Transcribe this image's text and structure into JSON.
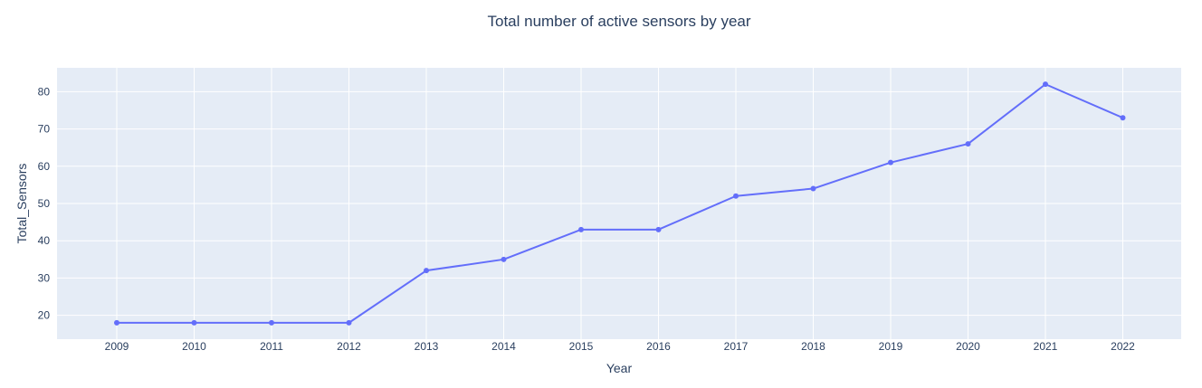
{
  "chart_data": {
    "type": "line",
    "title": "Total number of active sensors by year",
    "xlabel": "Year",
    "ylabel": "Total_Sensors",
    "x": [
      "2009",
      "2010",
      "2011",
      "2012",
      "2013",
      "2014",
      "2015",
      "2016",
      "2017",
      "2018",
      "2019",
      "2020",
      "2021",
      "2022"
    ],
    "series": [
      {
        "name": "Total_Sensors",
        "values": [
          18,
          18,
          18,
          18,
          32,
          35,
          43,
          43,
          52,
          54,
          61,
          66,
          82,
          73
        ]
      }
    ],
    "ylim": [
      13.6,
      86.4
    ],
    "yticks": [
      20,
      30,
      40,
      50,
      60,
      70,
      80
    ],
    "grid": true,
    "colors": {
      "line": "#636efa",
      "plot_bg": "#e5ecf6",
      "grid": "#ffffff",
      "text": "#2a3f5f"
    }
  }
}
